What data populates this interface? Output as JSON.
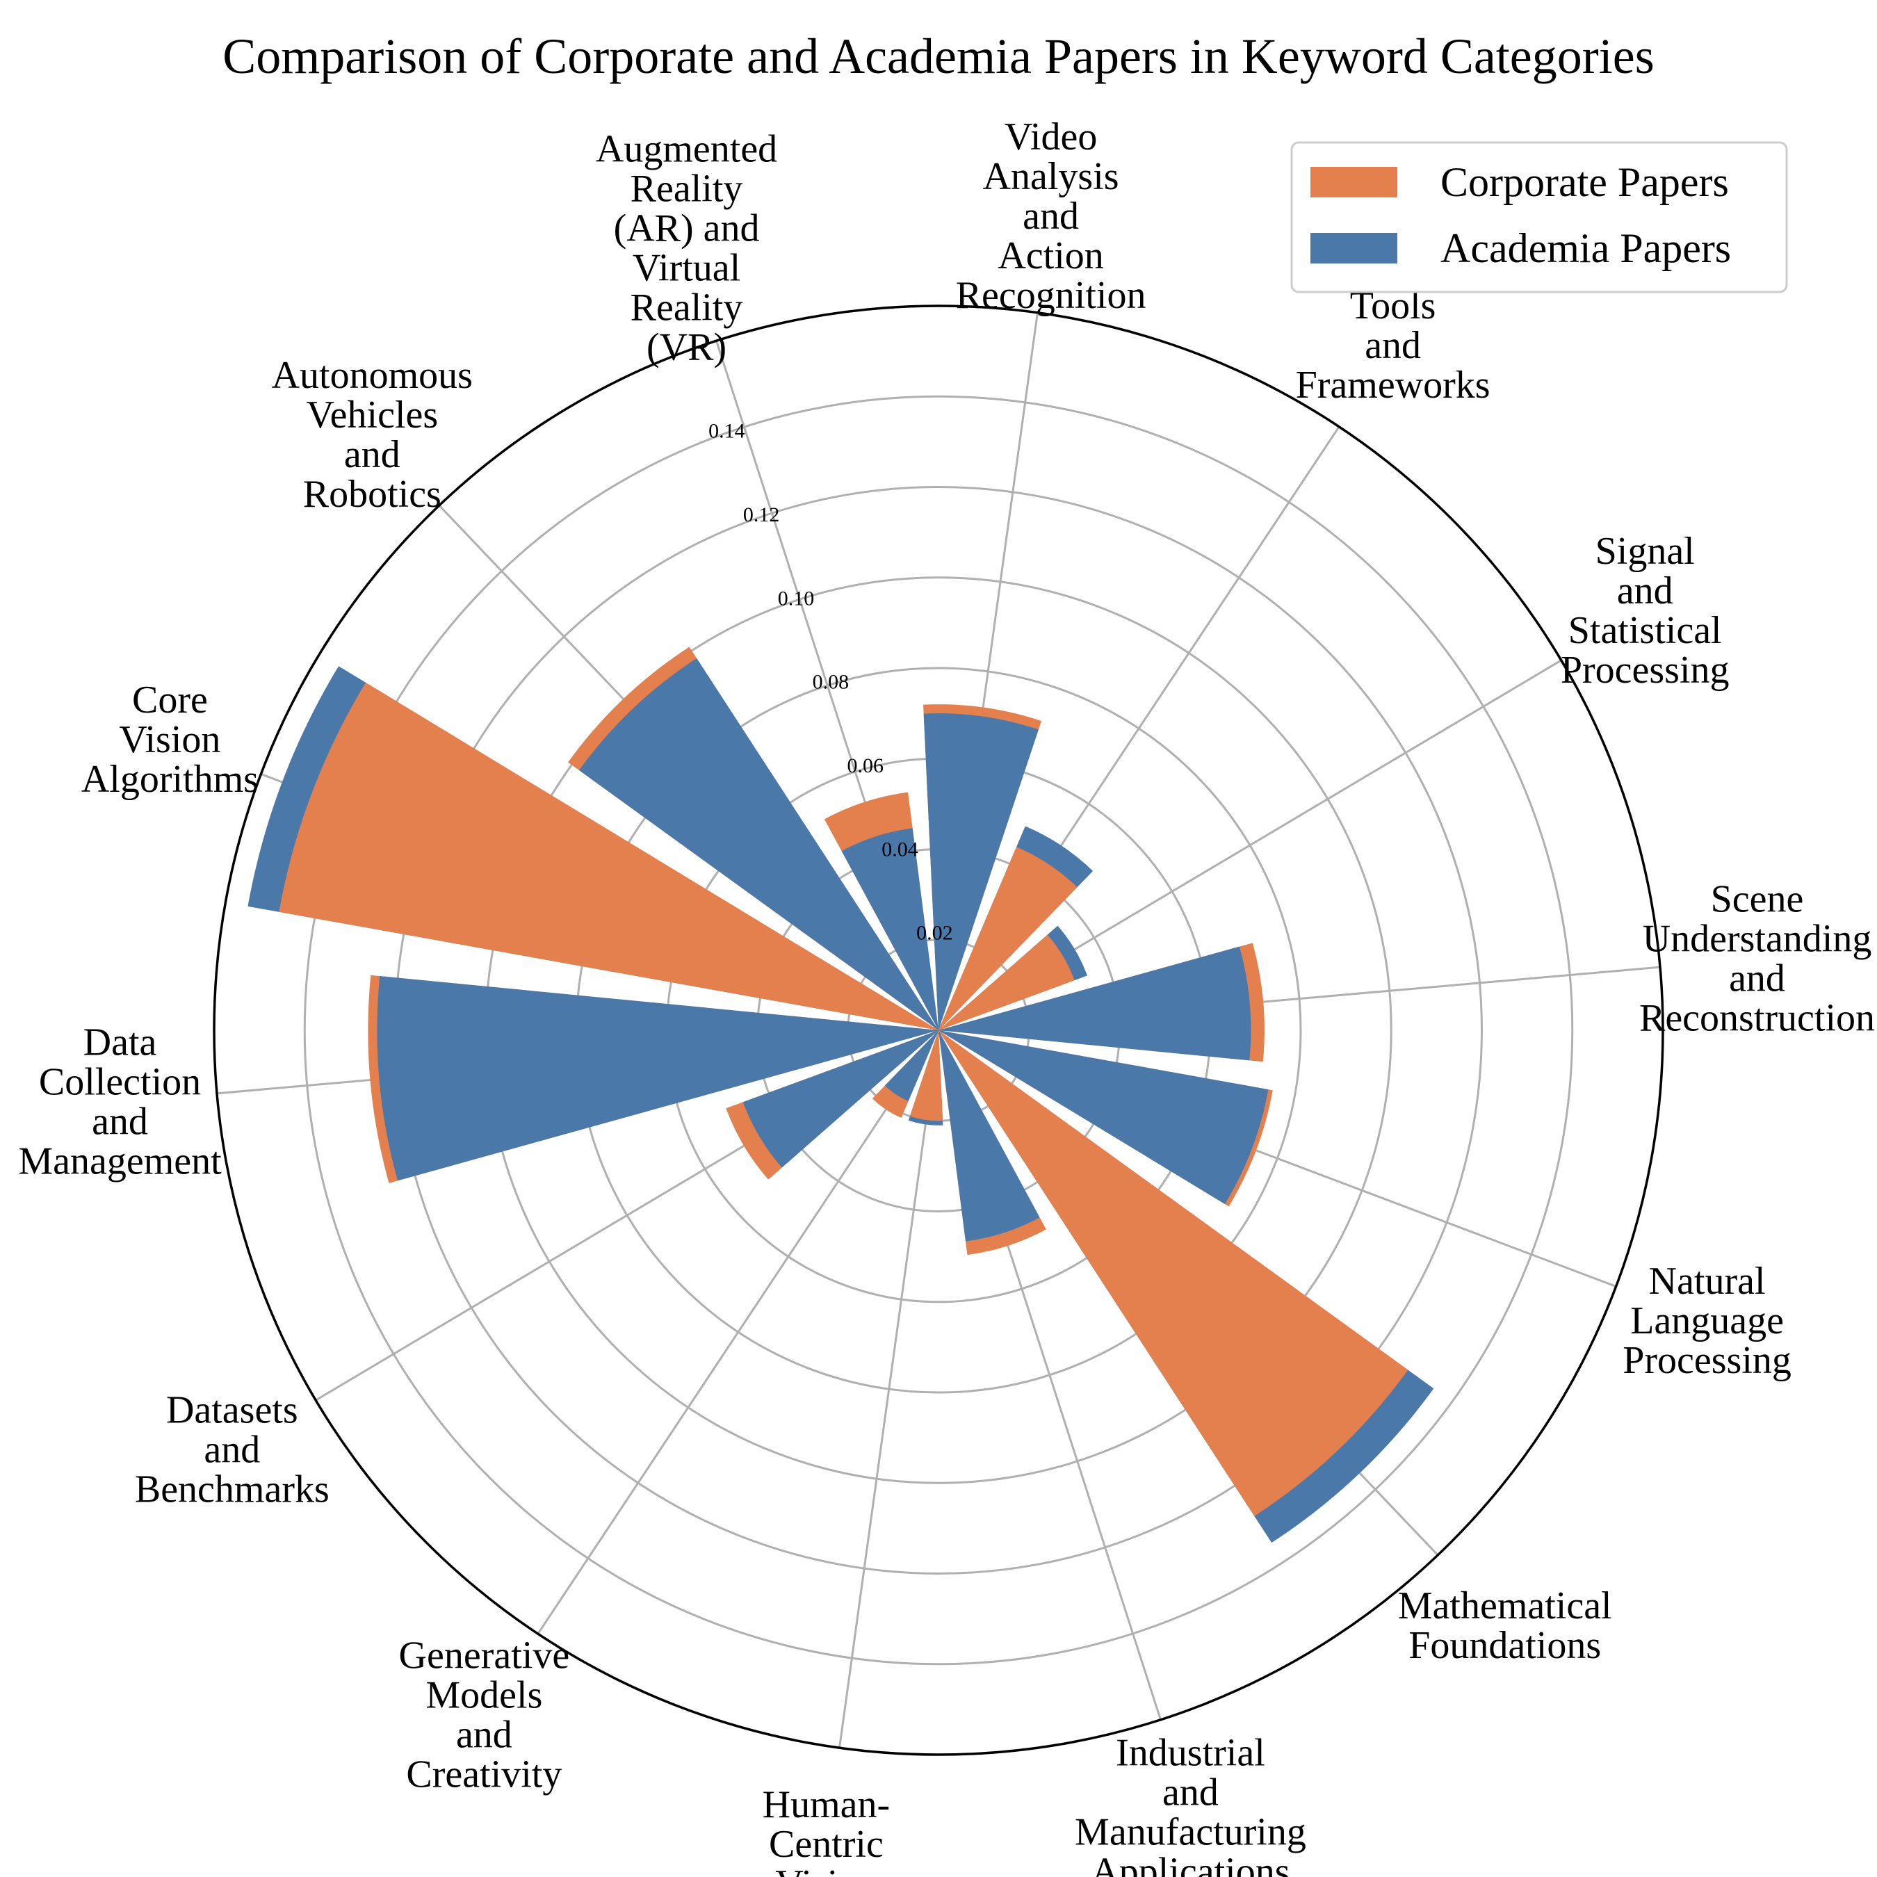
{
  "chart_data": {
    "type": "bar",
    "subtype": "polar-bar",
    "title": "Comparison of Corporate and Academia Papers in Keyword Categories",
    "categories": [
      "Scene Understanding and Reconstruction",
      "Signal and Statistical Processing",
      "Tools and Frameworks",
      "Video Analysis and Action Recognition",
      "Augmented Reality (AR) and Virtual Reality (VR)",
      "Autonomous Vehicles and Robotics",
      "Core Vision Algorithms",
      "Data Collection and Management",
      "Datasets and Benchmarks",
      "Generative Models and Creativity",
      "Human-Centric Vision",
      "Industrial and Manufacturing Applications",
      "Mathematical Foundations",
      "Natural Language Processing"
    ],
    "category_label_lines": [
      [
        "Scene",
        "Understanding",
        "and",
        "Reconstruction"
      ],
      [
        "Signal",
        "and",
        "Statistical",
        "Processing"
      ],
      [
        "Tools",
        "and",
        "Frameworks"
      ],
      [
        "Video",
        "Analysis",
        "and",
        "Action",
        "Recognition"
      ],
      [
        "Augmented",
        "Reality",
        "(AR) and",
        "Virtual",
        "Reality",
        "(VR)"
      ],
      [
        "Autonomous",
        "Vehicles",
        "and",
        "Robotics"
      ],
      [
        "Core",
        "Vision",
        "Algorithms"
      ],
      [
        "Data",
        "Collection",
        "and",
        "Management"
      ],
      [
        "Datasets",
        "and",
        "Benchmarks"
      ],
      [
        "Generative",
        "Models",
        "and",
        "Creativity"
      ],
      [
        "Human-",
        "Centric",
        "Vision"
      ],
      [
        "Industrial",
        "and",
        "Manufacturing",
        "Applications"
      ],
      [
        "Mathematical",
        "Foundations"
      ],
      [
        "Natural",
        "Language",
        "Processing"
      ]
    ],
    "series": [
      {
        "name": "Corporate Papers",
        "color": "#E4804E",
        "values": [
          0.072,
          0.032,
          0.044,
          0.072,
          0.053,
          0.101,
          0.148,
          0.126,
          0.05,
          0.021,
          0.02,
          0.05,
          0.128,
          0.075
        ]
      },
      {
        "name": "Academia Papers",
        "color": "#4A78A8",
        "values": [
          0.069,
          0.035,
          0.049,
          0.07,
          0.045,
          0.098,
          0.155,
          0.124,
          0.046,
          0.017,
          0.021,
          0.047,
          0.135,
          0.074
        ]
      }
    ],
    "r_ticks": [
      "0.02",
      "0.04",
      "0.06",
      "0.08",
      "0.10",
      "0.12",
      "0.14"
    ],
    "r_tick_values": [
      0.02,
      0.04,
      0.06,
      0.08,
      0.1,
      0.12,
      0.14
    ],
    "rlim": [
      0,
      0.16
    ],
    "grid": true,
    "legend_position": "top-right",
    "draw_order": "larger value drawn behind smaller value"
  }
}
